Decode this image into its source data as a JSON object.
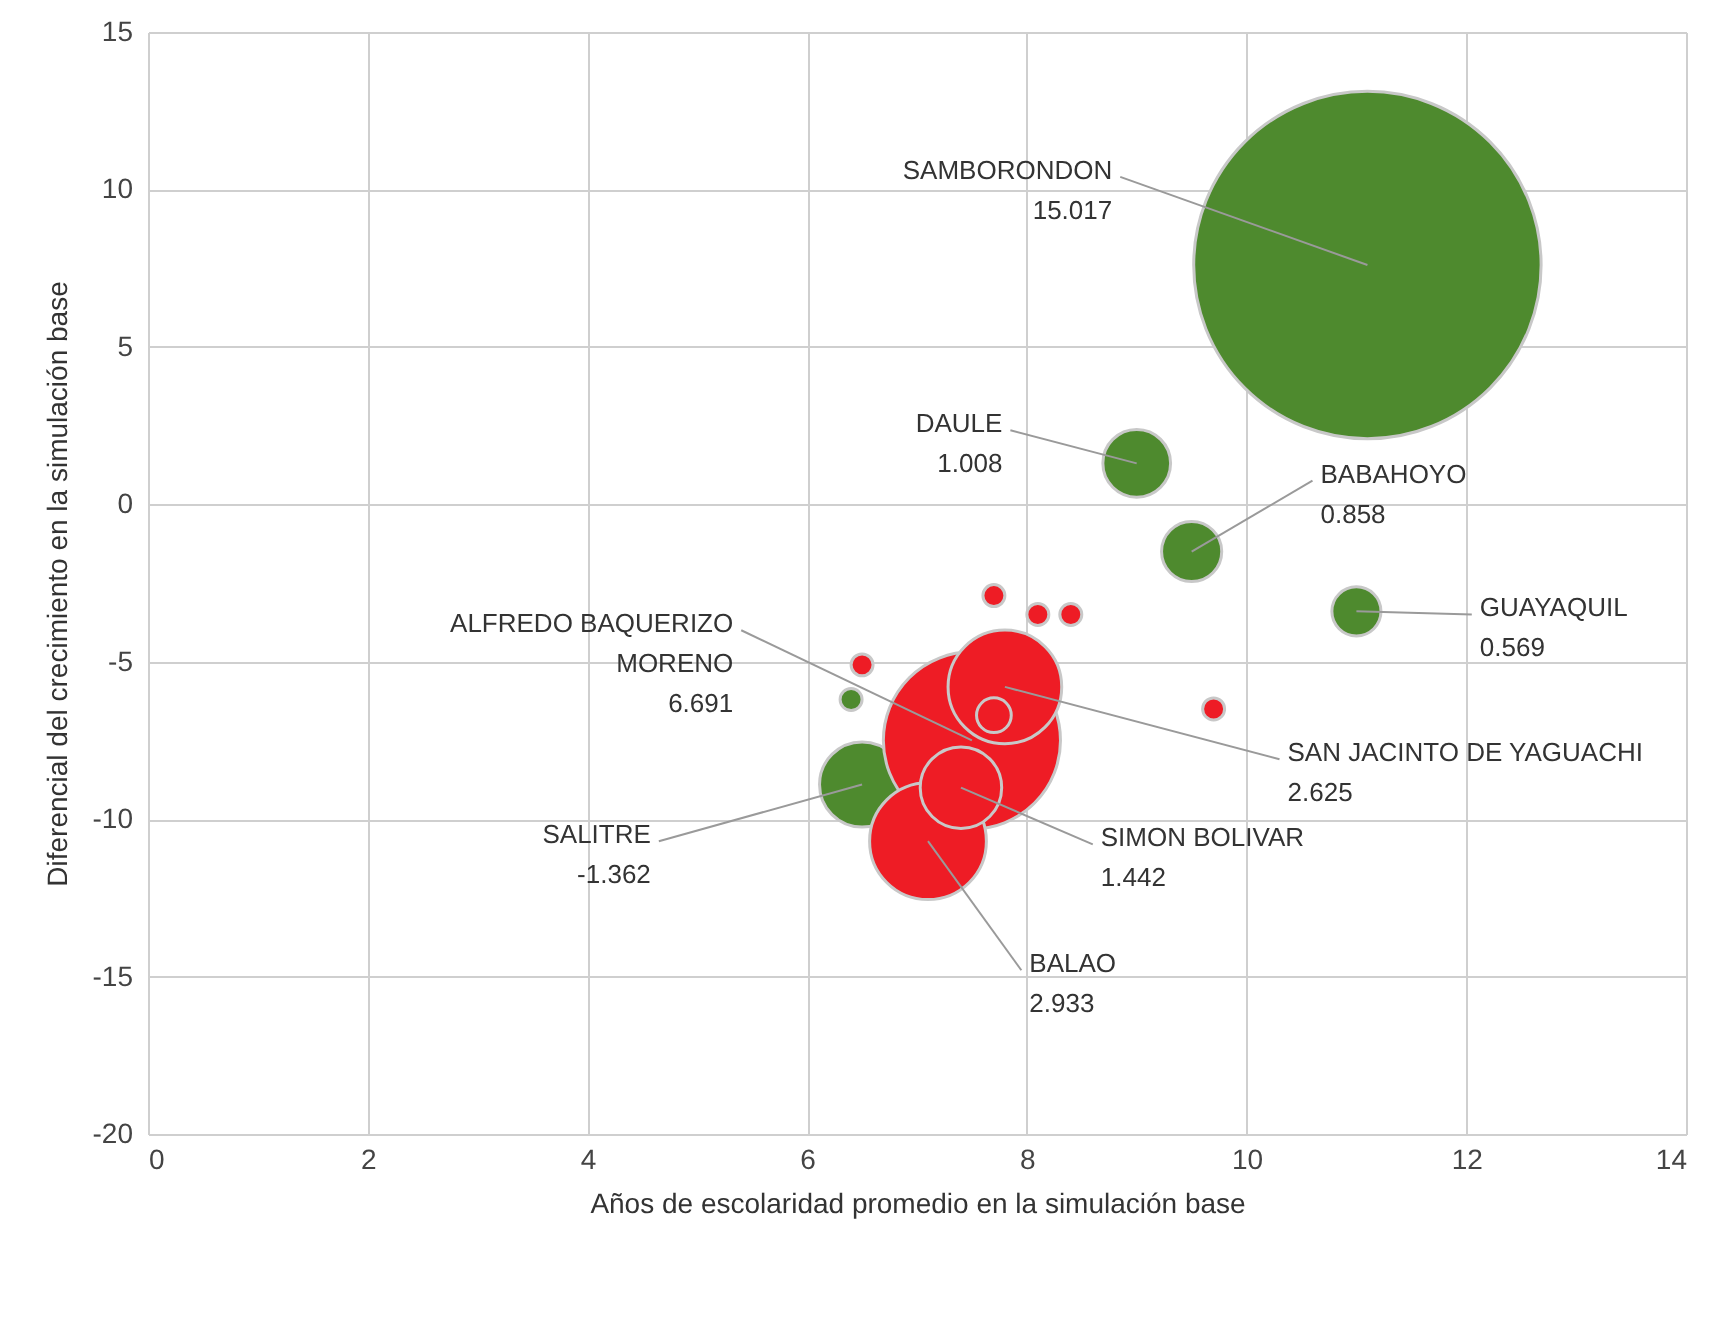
{
  "chart_data": {
    "type": "bubble",
    "xlabel": "Años de escolaridad promedio en la simulación base",
    "ylabel": "Diferencial del crecimiento en la simulación base",
    "xlim": [
      0,
      14
    ],
    "xticks": [
      0,
      2,
      4,
      6,
      8,
      10,
      12,
      14
    ],
    "ylim": [
      -20,
      15
    ],
    "yticks": [
      -20,
      -15,
      -10,
      -5,
      0,
      5,
      10,
      15
    ],
    "grid": true,
    "marker": "circle",
    "series": [
      {
        "color": "#4e8a2e",
        "x": [
          11.1,
          9.0,
          9.5,
          11.0,
          6.4,
          6.5
        ],
        "values": [
          7.6,
          1.3,
          -1.5,
          -3.4,
          -6.2,
          -8.9
        ],
        "sizes": [
          1,
          0.038,
          0.03,
          0.02,
          0.004,
          0.06
        ]
      },
      {
        "color": "#ee1c25",
        "x": [
          7.5,
          7.8,
          7.1,
          7.4,
          7.7,
          7.7,
          8.1,
          8.4,
          6.5,
          9.7
        ],
        "values": [
          -7.5,
          -5.8,
          -10.7,
          -9.0,
          -6.7,
          -2.9,
          -3.5,
          -3.5,
          -5.1,
          -6.5
        ],
        "sizes": [
          0.26,
          0.107,
          0.113,
          0.055,
          0.01,
          0.004,
          0.004,
          0.004,
          0.004,
          0.004
        ]
      }
    ],
    "annotations": [
      {
        "text": "SAMBORONDON\n15.017",
        "x": 11.1,
        "y": 7.6
      },
      {
        "text": "DAULE\n1.008",
        "x": 9.0,
        "y": 1.3
      },
      {
        "text": "BABAHOYO\n0.858",
        "x": 9.5,
        "y": -1.5
      },
      {
        "text": "GUAYAQUIL\n0.569",
        "x": 11.0,
        "y": -3.4
      },
      {
        "text": "ALFREDO BAQUERIZO\nMORENO\n6.691",
        "x": 7.5,
        "y": -7.5
      },
      {
        "text": "SAN JACINTO DE YAGUACHI\n2.625",
        "x": 7.8,
        "y": -5.8
      },
      {
        "text": "SALITRE\n-1.362",
        "x": 6.5,
        "y": -8.9
      },
      {
        "text": "SIMON BOLIVAR\n1.442",
        "x": 7.4,
        "y": -9.0
      },
      {
        "text": "BALAO\n2.933",
        "x": 7.1,
        "y": -10.7
      }
    ]
  }
}
